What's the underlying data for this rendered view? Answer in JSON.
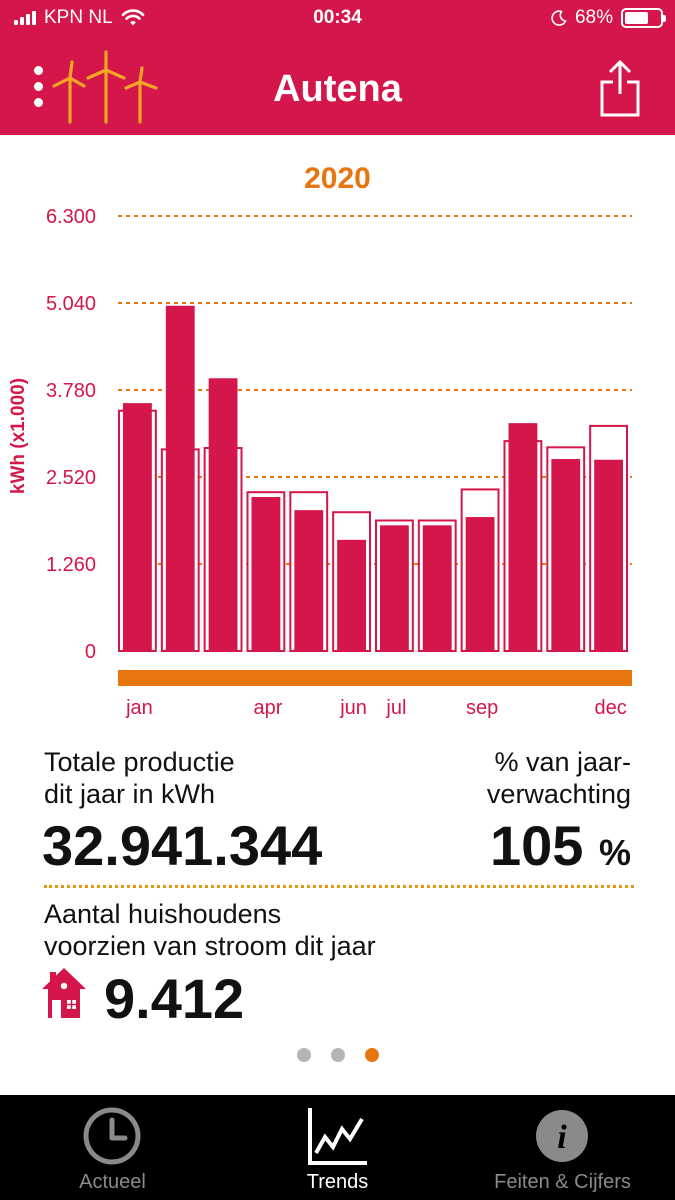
{
  "status_bar": {
    "carrier": "KPN NL",
    "time": "00:34",
    "battery": "68%",
    "battery_level": 0.68
  },
  "nav": {
    "title": "Autena",
    "menu_icon": "menu-dots-icon",
    "logo_icon": "wind-turbines-icon",
    "share_icon": "share-icon"
  },
  "colors": {
    "brand": "#d4164a",
    "accent": "#e8760f",
    "tab_bar": "#000000"
  },
  "chart_data": {
    "type": "bar",
    "title": "2020",
    "ylabel": "kWh (x1.000)",
    "ylim": [
      0,
      6300
    ],
    "yticks": [
      "6.300",
      "5.040",
      "3.780",
      "2.520",
      "1.260",
      "0"
    ],
    "ytick_values": [
      6300,
      5040,
      3780,
      2520,
      1260,
      0
    ],
    "months": 12,
    "xtick_labels": [
      {
        "month": 1,
        "label": "jan"
      },
      {
        "month": 4,
        "label": "apr"
      },
      {
        "month": 6,
        "label": "jun"
      },
      {
        "month": 7,
        "label": "jul"
      },
      {
        "month": 9,
        "label": "sep"
      },
      {
        "month": 12,
        "label": "dec"
      }
    ],
    "series": [
      {
        "values": [
          3590,
          5000,
          3950,
          2230,
          2040,
          1610,
          1820,
          1820,
          1940,
          3300,
          2780,
          2770
        ]
      },
      {
        "values": [
          3480,
          2920,
          2940,
          2300,
          2300,
          2010,
          1890,
          1890,
          2340,
          3040,
          2950,
          3260
        ]
      }
    ],
    "grid": "dotted"
  },
  "stats": {
    "total_label_line1": "Totale productie",
    "total_label_line2": "dit jaar in kWh",
    "total_value": "32.941.344",
    "pct_label_line1": "% van jaar-",
    "pct_label_line2": "verwachting",
    "pct_value": "105",
    "pct_unit": "%",
    "households_label_line1": "Aantal huishoudens",
    "households_label_line2": "voorzien van stroom dit jaar",
    "households_value": "9.412"
  },
  "pager": {
    "count": 3,
    "active": 3
  },
  "tabs": [
    {
      "label": "Actueel",
      "icon": "clock-icon",
      "active": false
    },
    {
      "label": "Trends",
      "icon": "trend-chart-icon",
      "active": true
    },
    {
      "label": "Feiten & Cijfers",
      "icon": "info-icon",
      "active": false
    }
  ]
}
